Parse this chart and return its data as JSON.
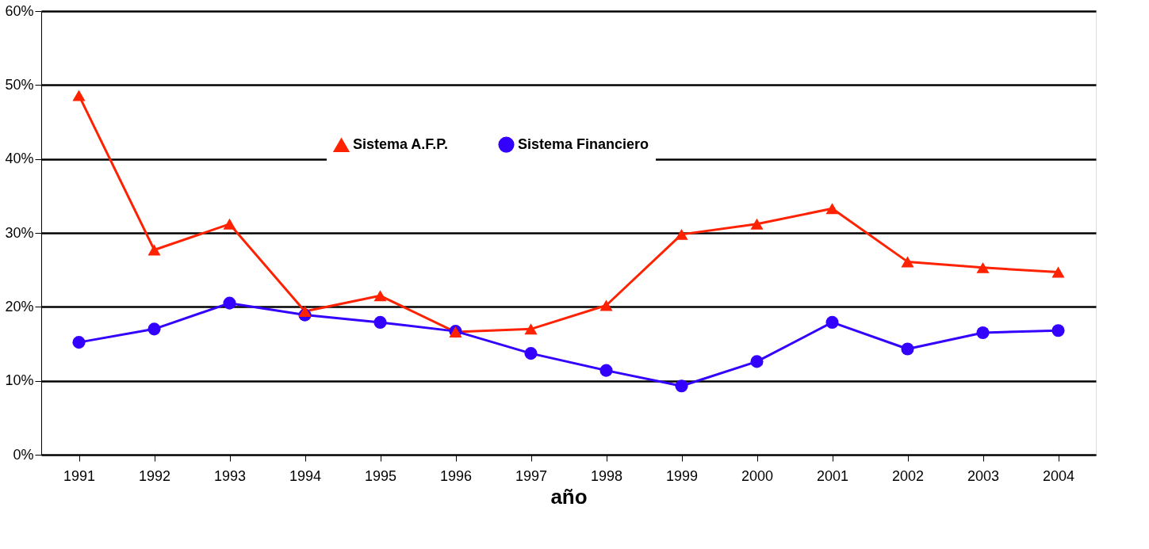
{
  "chart_data": {
    "type": "line",
    "xlabel": "año",
    "categories": [
      "1991",
      "1992",
      "1993",
      "1994",
      "1995",
      "1996",
      "1997",
      "1998",
      "1999",
      "2000",
      "2001",
      "2002",
      "2003",
      "2004"
    ],
    "series": [
      {
        "name": "Sistema A.F.P.",
        "color": "#ff2200",
        "marker": "triangle",
        "values": [
          48.6,
          27.7,
          31.2,
          19.4,
          21.5,
          16.6,
          17.0,
          20.2,
          29.8,
          31.2,
          33.3,
          26.1,
          25.3,
          24.7
        ]
      },
      {
        "name": "Sistema Financiero",
        "color": "#3300ff",
        "marker": "circle",
        "values": [
          15.2,
          17.0,
          20.5,
          18.9,
          17.9,
          16.7,
          13.7,
          11.4,
          9.3,
          12.6,
          17.9,
          14.3,
          16.5,
          16.8
        ]
      }
    ],
    "ylim": [
      0,
      60
    ],
    "yticks": [
      {
        "value": 0,
        "label": "0%"
      },
      {
        "value": 10,
        "label": "10%"
      },
      {
        "value": 20,
        "label": "20%"
      },
      {
        "value": 30,
        "label": "30%"
      },
      {
        "value": 40,
        "label": "40%"
      },
      {
        "value": 50,
        "label": "50%"
      },
      {
        "value": 60,
        "label": "60%"
      }
    ],
    "grid": "y",
    "legend": "top",
    "line_style": "solid"
  }
}
